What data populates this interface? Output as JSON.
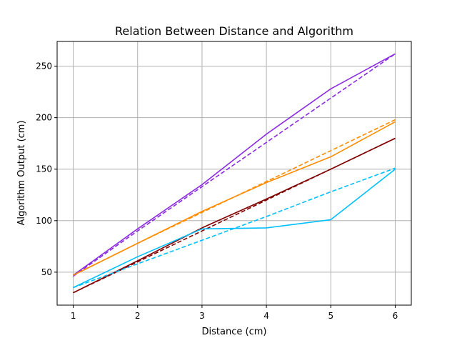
{
  "chart_data": {
    "type": "line",
    "title": "Relation Between Distance and Algorithm",
    "xlabel": "Distance (cm)",
    "ylabel": "Algorithm Output (cm)",
    "xlim": [
      0.75,
      6.25
    ],
    "ylim": [
      18,
      274
    ],
    "xticks": [
      1,
      2,
      3,
      4,
      5,
      6
    ],
    "yticks": [
      50,
      100,
      150,
      200,
      250
    ],
    "grid": true,
    "x": [
      1,
      2,
      3,
      4,
      5,
      6
    ],
    "series": [
      {
        "color": "#8a2be2",
        "style": "solid",
        "values": [
          47,
          92,
          135,
          184,
          228,
          262
        ]
      },
      {
        "color": "#8a2be2",
        "style": "dashed",
        "values": [
          46,
          90,
          133,
          176,
          219,
          262
        ]
      },
      {
        "color": "#ff8c00",
        "style": "solid",
        "values": [
          47,
          78,
          109,
          137,
          162,
          196
        ]
      },
      {
        "color": "#ff8c00",
        "style": "dashed",
        "values": [
          47,
          78,
          108,
          138,
          168,
          198
        ]
      },
      {
        "color": "#800000",
        "style": "solid",
        "values": [
          30,
          61,
          93,
          121,
          150,
          180
        ]
      },
      {
        "color": "#800000",
        "style": "dashed",
        "values": [
          30,
          60,
          90,
          120,
          150,
          180
        ]
      },
      {
        "color": "#00bfff",
        "style": "solid",
        "values": [
          35,
          65,
          92,
          93,
          101,
          150
        ]
      },
      {
        "color": "#00bfff",
        "style": "dashed",
        "values": [
          35,
          58,
          81,
          104,
          128,
          151
        ]
      }
    ]
  }
}
